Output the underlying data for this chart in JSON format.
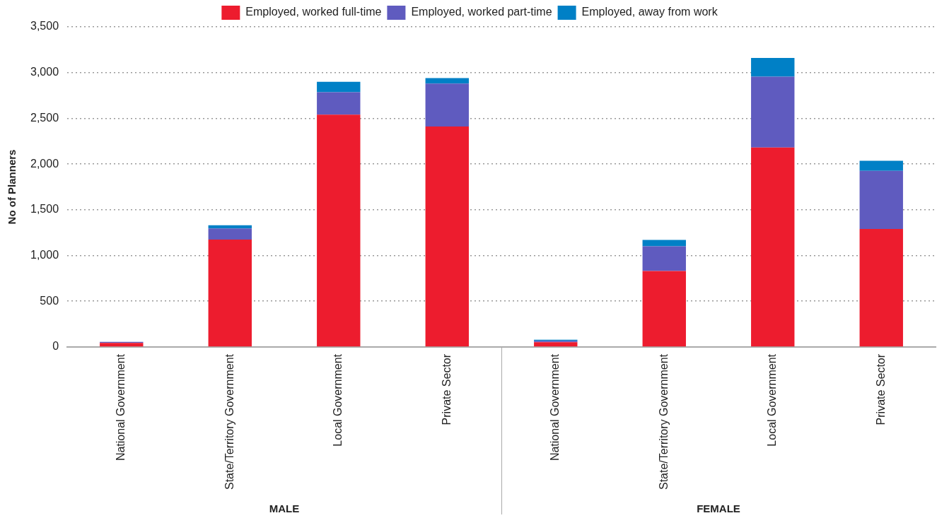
{
  "chart_data": {
    "type": "bar",
    "stacked": true,
    "ylabel": "No of Planners",
    "categories": [
      "National Government",
      "State/Territory Government",
      "Local Government",
      "Private Sector",
      "National Government",
      "State/Territory Government",
      "Local Government",
      "Private Sector"
    ],
    "series": [
      {
        "name": "Employed, worked full-time",
        "color": "#ed1c2e",
        "values": [
          43,
          1175,
          2540,
          2410,
          52,
          830,
          2180,
          1290
        ]
      },
      {
        "name": "Employed, worked part-time",
        "color": "#5f5bbf",
        "values": [
          12,
          120,
          245,
          470,
          15,
          270,
          775,
          635
        ]
      },
      {
        "name": "Employed, away from work",
        "color": "#0080c6",
        "values": [
          null,
          35,
          115,
          60,
          11,
          70,
          205,
          110
        ]
      }
    ],
    "ylim": [
      0,
      3500
    ],
    "yticks": [
      0,
      500,
      {
        "value": 1000,
        "label": "1,000"
      },
      {
        "value": 1500,
        "label": "1,500"
      },
      {
        "value": 2000,
        "label": "2,000"
      },
      {
        "value": 2500,
        "label": "2,500"
      },
      {
        "value": 3000,
        "label": "3,000"
      },
      {
        "value": 3500,
        "label": "3,500"
      }
    ],
    "grid": "y",
    "legend": "top",
    "annotations": [
      "MALE",
      "FEMALE"
    ]
  }
}
